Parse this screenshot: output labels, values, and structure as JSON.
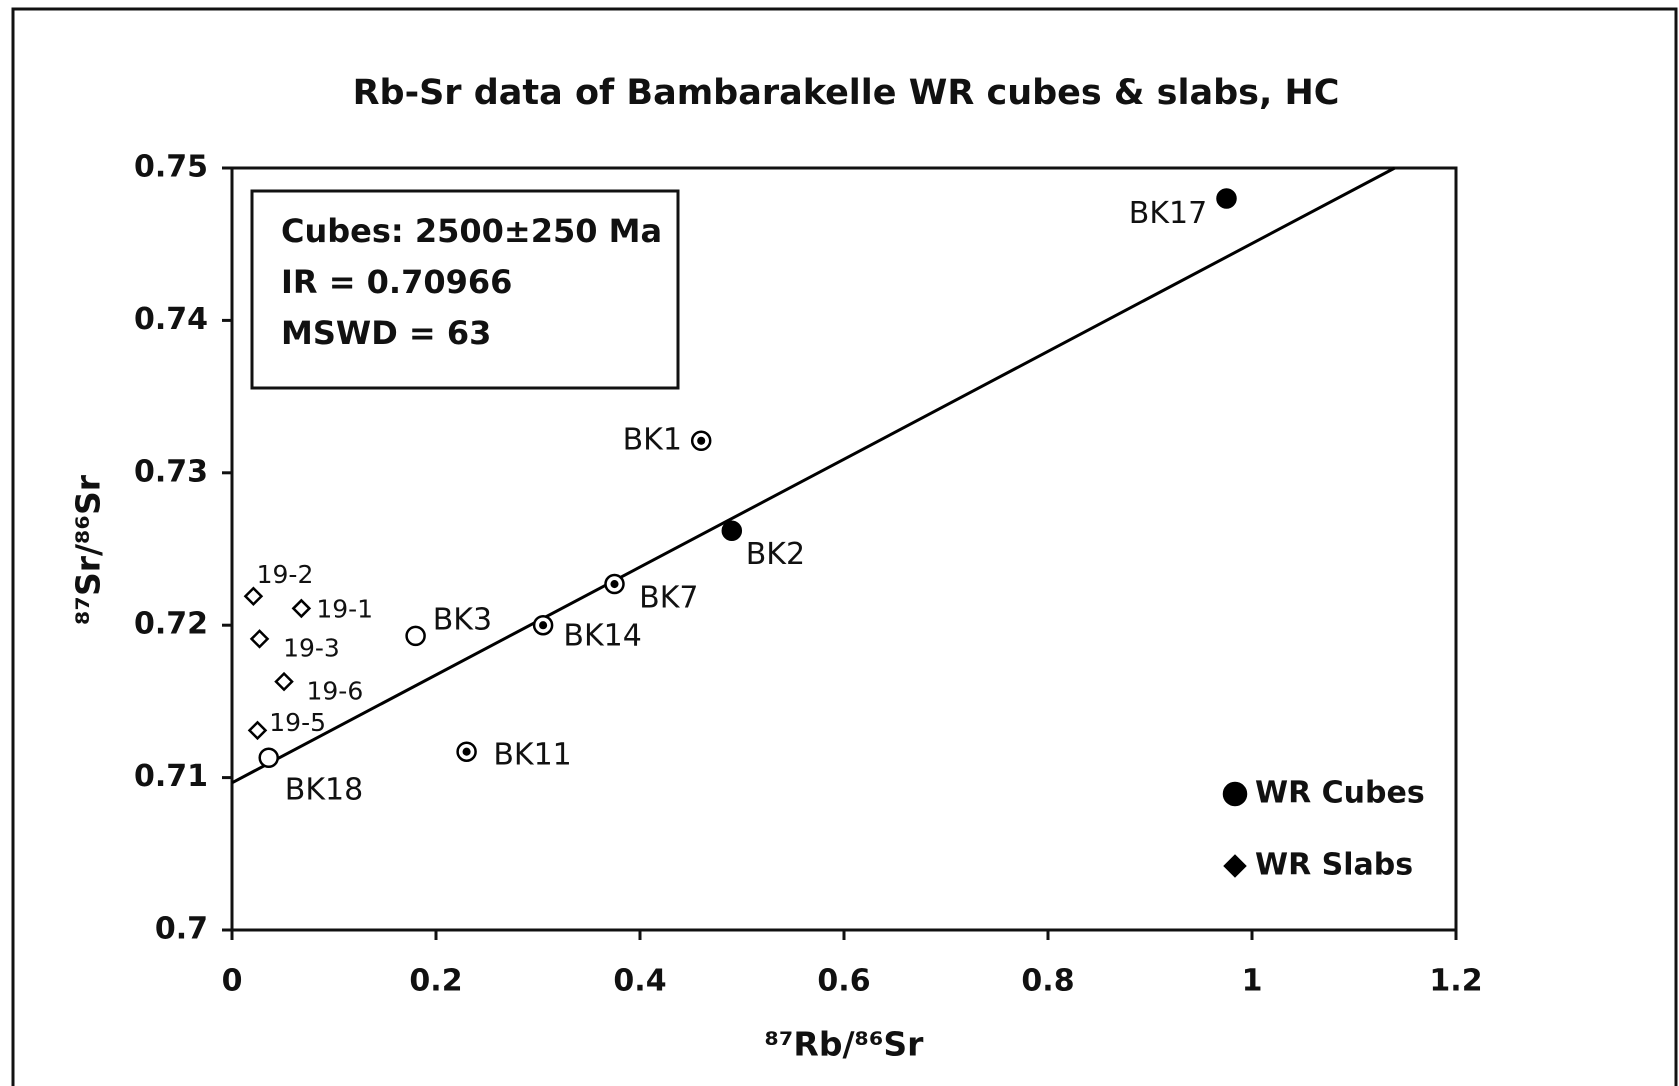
{
  "chart_data": {
    "type": "scatter",
    "title": "Rb-Sr data of Bambarakelle WR cubes & slabs, HC",
    "x_label": "⁸⁷Rb/⁸⁶Sr",
    "y_label": "⁸⁷Sr/⁸⁶Sr",
    "xlim": [
      0,
      1.2
    ],
    "ylim": [
      0.7,
      0.75
    ],
    "xticks": [
      0,
      0.2,
      0.4,
      0.6,
      0.8,
      1,
      1.2
    ],
    "yticks": [
      0.7,
      0.71,
      0.72,
      0.73,
      0.74,
      0.75
    ],
    "legend": "lower right",
    "annotation": [
      "Cubes: 2500±250 Ma",
      "IR = 0.70966",
      "MSWD = 63"
    ],
    "fit_line": {
      "x": [
        0,
        1.14
      ],
      "y": [
        0.70966,
        0.75
      ],
      "color": "#000000"
    },
    "series": [
      {
        "name": "WR Cubes",
        "marker": "circle",
        "color": "#000000",
        "labels": [
          "BK17",
          "BK1",
          "BK2",
          "BK7",
          "BK14",
          "BK3",
          "BK11",
          "BK18"
        ],
        "styles": [
          "filled",
          "dot",
          "filled",
          "dot",
          "dot",
          "open",
          "dot",
          "open"
        ],
        "x": [
          0.975,
          0.46,
          0.49,
          0.375,
          0.305,
          0.18,
          0.23,
          0.036
        ],
        "y": [
          0.748,
          0.7321,
          0.7262,
          0.7227,
          0.72,
          0.7193,
          0.7117,
          0.7113
        ]
      },
      {
        "name": "WR Slabs",
        "marker": "diamond",
        "color": "#000000",
        "labels": [
          "19-2",
          "19-1",
          "19-3",
          "19-6",
          "19-5"
        ],
        "styles": [
          "open",
          "open",
          "open",
          "open",
          "open"
        ],
        "x": [
          0.021,
          0.068,
          0.027,
          0.051,
          0.025
        ],
        "y": [
          0.7219,
          0.7211,
          0.7191,
          0.7163,
          0.7131
        ]
      }
    ]
  }
}
